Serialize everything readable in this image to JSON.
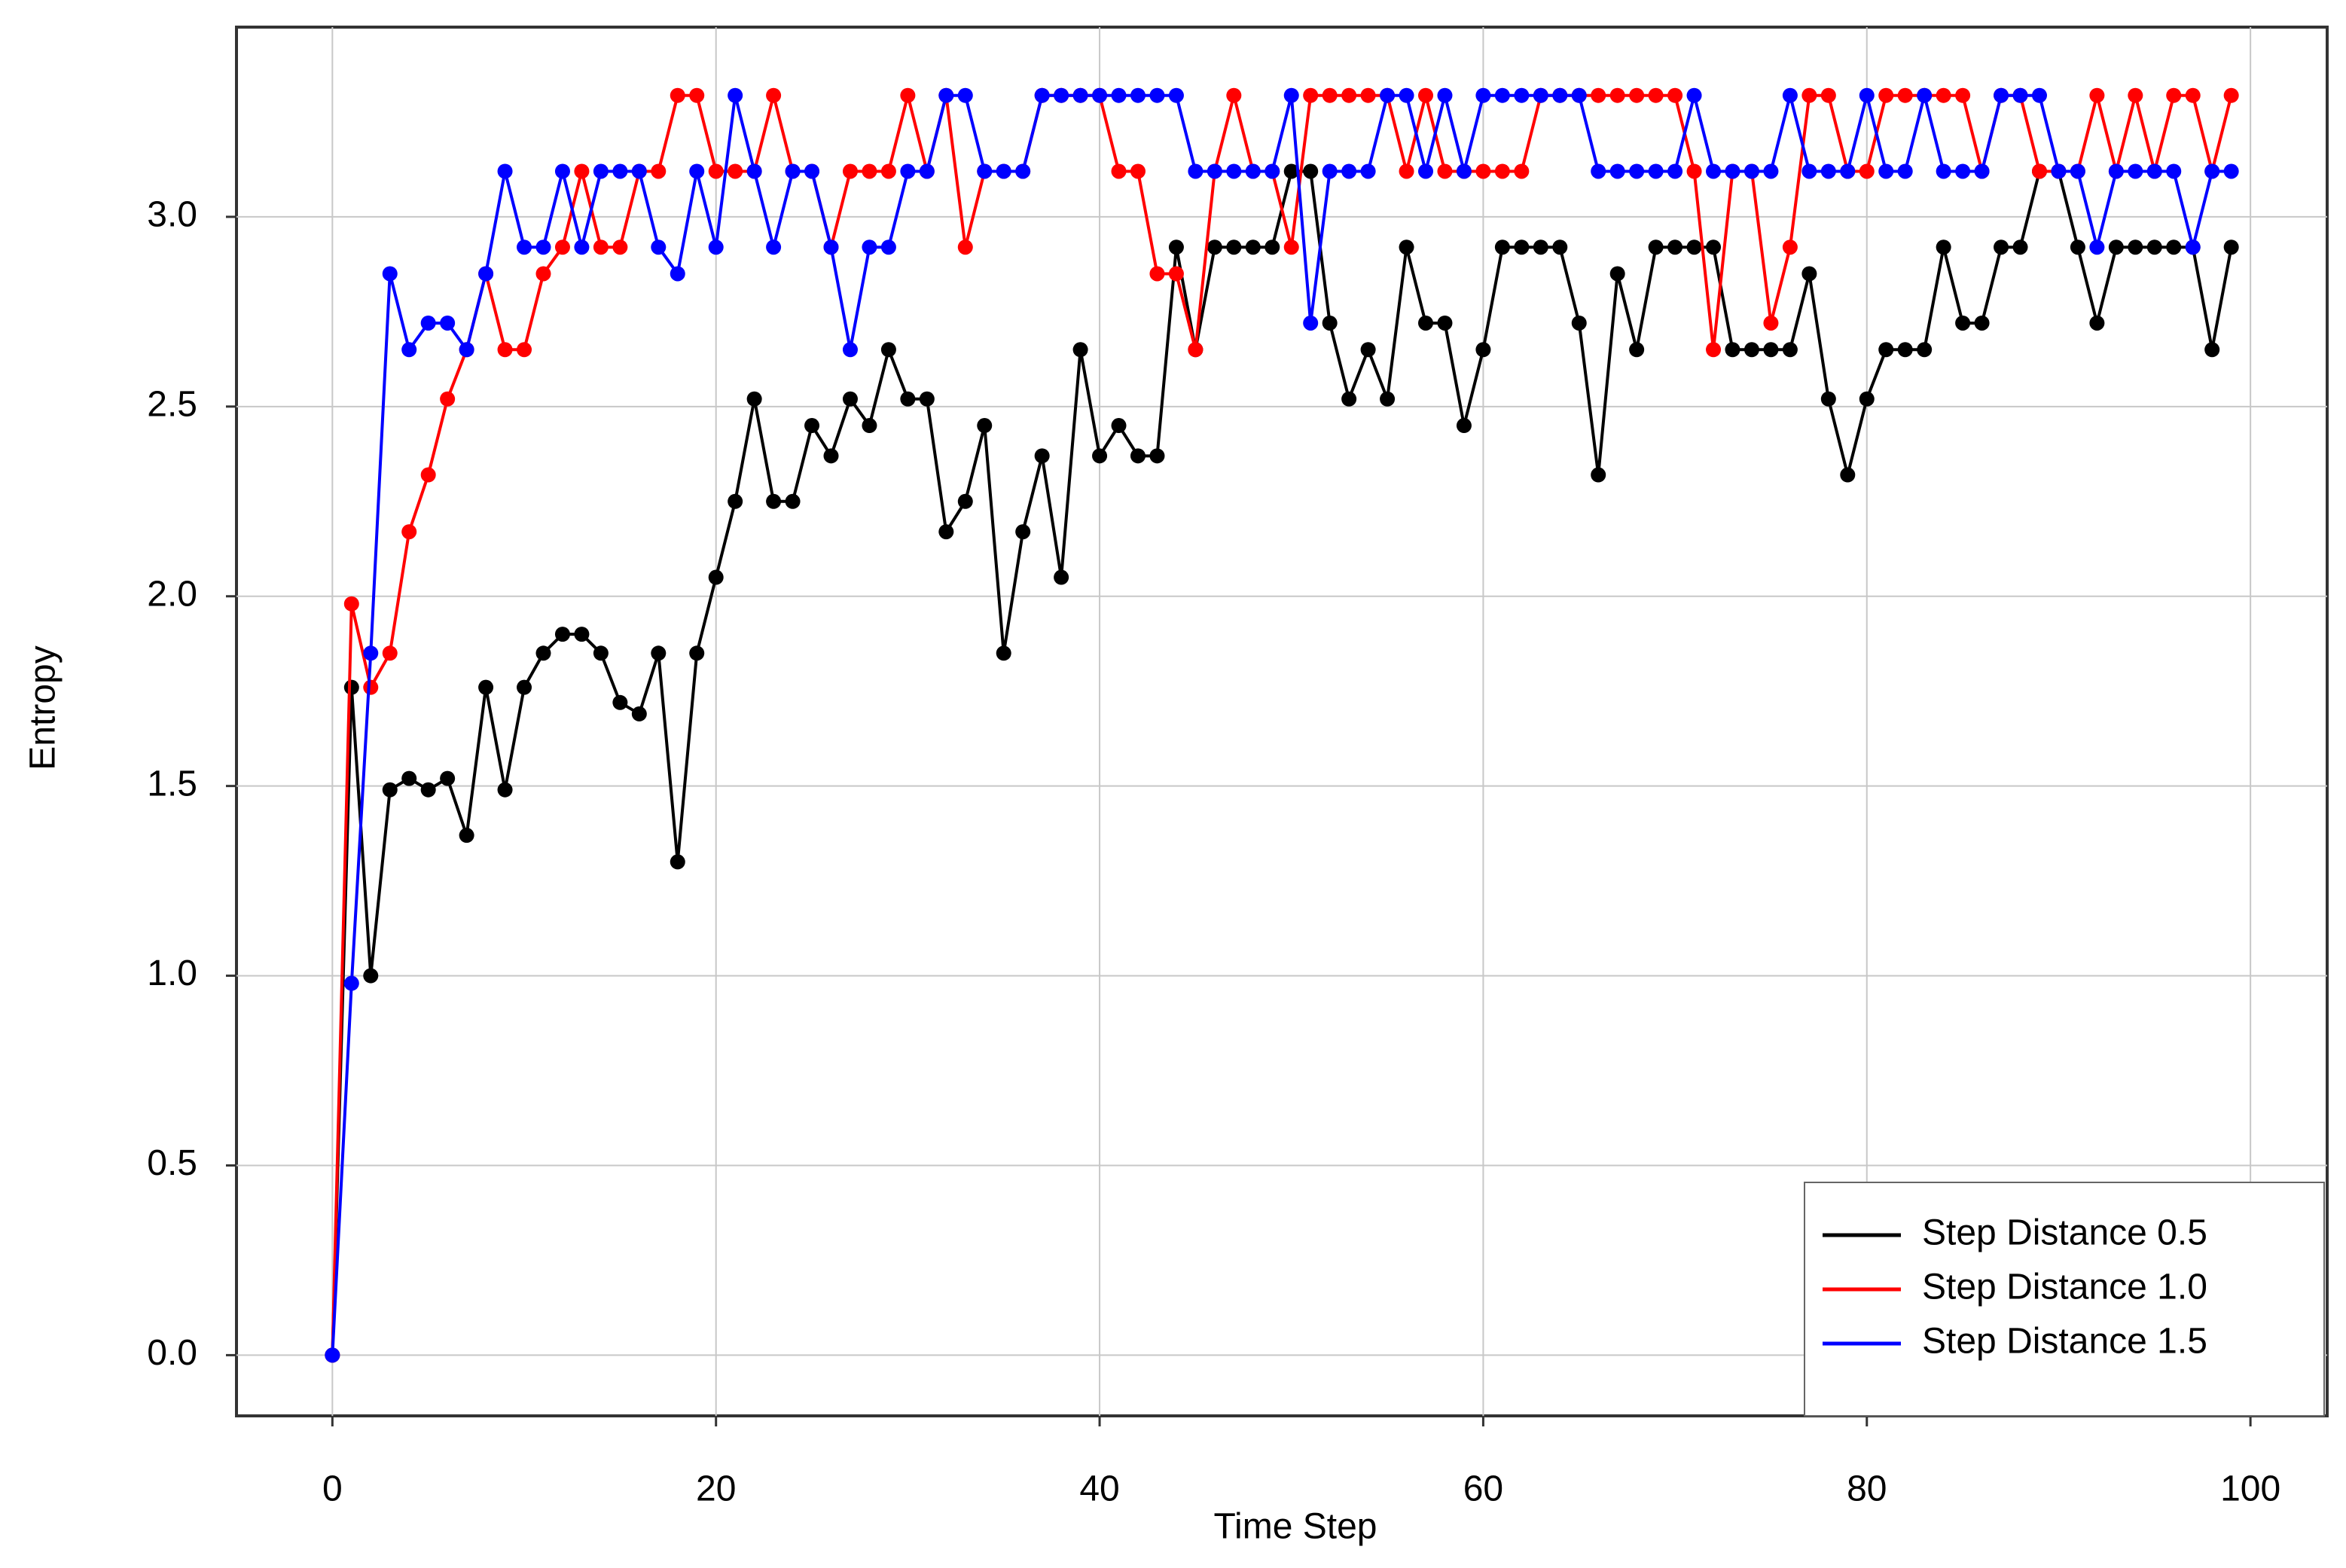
{
  "chart_data": {
    "type": "line",
    "x_label": "Time Step",
    "y_label": "Entropy",
    "x": [
      0,
      1,
      2,
      3,
      4,
      5,
      6,
      7,
      8,
      9,
      10,
      11,
      12,
      13,
      14,
      15,
      16,
      17,
      18,
      19,
      20,
      21,
      22,
      23,
      24,
      25,
      26,
      27,
      28,
      29,
      30,
      31,
      32,
      33,
      34,
      35,
      36,
      37,
      38,
      39,
      40,
      41,
      42,
      43,
      44,
      45,
      46,
      47,
      48,
      49,
      50,
      51,
      52,
      53,
      54,
      55,
      56,
      57,
      58,
      59,
      60,
      61,
      62,
      63,
      64,
      65,
      66,
      67,
      68,
      69,
      70,
      71,
      72,
      73,
      74,
      75,
      76,
      77,
      78,
      79,
      80,
      81,
      82,
      83,
      84,
      85,
      86,
      87,
      88,
      89,
      90,
      91,
      92,
      93,
      94,
      95,
      96,
      97,
      98,
      99
    ],
    "series": [
      {
        "name": "Step Distance 0.5",
        "color": "#000000",
        "values": [
          0,
          1.76,
          1.0,
          1.49,
          1.52,
          1.49,
          1.52,
          1.37,
          1.76,
          1.49,
          1.76,
          1.85,
          1.9,
          1.9,
          1.85,
          1.72,
          1.69,
          1.85,
          1.3,
          1.85,
          2.05,
          2.25,
          2.52,
          2.25,
          2.25,
          2.45,
          2.37,
          2.52,
          2.45,
          2.65,
          2.52,
          2.52,
          2.17,
          2.25,
          2.45,
          1.85,
          2.17,
          2.37,
          2.05,
          2.65,
          2.37,
          2.45,
          2.37,
          2.37,
          2.92,
          2.65,
          2.92,
          2.92,
          2.92,
          2.92,
          3.12,
          3.12,
          2.72,
          2.52,
          2.65,
          2.52,
          2.92,
          2.72,
          2.72,
          2.45,
          2.65,
          2.92,
          2.92,
          2.92,
          2.92,
          2.72,
          2.32,
          2.85,
          2.65,
          2.92,
          2.92,
          2.92,
          2.92,
          2.65,
          2.65,
          2.65,
          2.65,
          2.85,
          2.52,
          2.32,
          2.52,
          2.65,
          2.65,
          2.65,
          2.92,
          2.72,
          2.72,
          2.92,
          2.92,
          3.12,
          3.12,
          2.92,
          2.72,
          2.92,
          2.92,
          2.92,
          2.92,
          2.92,
          2.65,
          2.92
        ]
      },
      {
        "name": "Step Distance 1.0",
        "color": "#ff0000",
        "values": [
          0,
          1.98,
          1.76,
          1.85,
          2.17,
          2.32,
          2.52,
          2.65,
          2.85,
          2.65,
          2.65,
          2.85,
          2.92,
          3.12,
          2.92,
          2.92,
          3.12,
          3.12,
          3.32,
          3.32,
          3.12,
          3.12,
          3.12,
          3.32,
          3.12,
          3.12,
          2.92,
          3.12,
          3.12,
          3.12,
          3.32,
          3.12,
          3.32,
          2.92,
          3.12,
          3.12,
          3.12,
          3.32,
          3.32,
          3.32,
          3.32,
          3.12,
          3.12,
          2.85,
          2.85,
          2.65,
          3.12,
          3.32,
          3.12,
          3.12,
          2.92,
          3.32,
          3.32,
          3.32,
          3.32,
          3.32,
          3.12,
          3.32,
          3.12,
          3.12,
          3.12,
          3.12,
          3.12,
          3.32,
          3.32,
          3.32,
          3.32,
          3.32,
          3.32,
          3.32,
          3.32,
          3.12,
          2.65,
          3.12,
          3.12,
          2.72,
          2.92,
          3.32,
          3.32,
          3.12,
          3.12,
          3.32,
          3.32,
          3.32,
          3.32,
          3.32,
          3.12,
          3.32,
          3.32,
          3.12,
          3.12,
          3.12,
          3.32,
          3.12,
          3.32,
          3.12,
          3.32,
          3.32,
          3.12,
          3.32
        ]
      },
      {
        "name": "Step Distance 1.5",
        "color": "#0000ff",
        "values": [
          0,
          0.98,
          1.85,
          2.85,
          2.65,
          2.72,
          2.72,
          2.65,
          2.85,
          3.12,
          2.92,
          2.92,
          3.12,
          2.92,
          3.12,
          3.12,
          3.12,
          2.92,
          2.85,
          3.12,
          2.92,
          3.32,
          3.12,
          2.92,
          3.12,
          3.12,
          2.92,
          2.65,
          2.92,
          2.92,
          3.12,
          3.12,
          3.32,
          3.32,
          3.12,
          3.12,
          3.12,
          3.32,
          3.32,
          3.32,
          3.32,
          3.32,
          3.32,
          3.32,
          3.32,
          3.12,
          3.12,
          3.12,
          3.12,
          3.12,
          3.32,
          2.72,
          3.12,
          3.12,
          3.12,
          3.32,
          3.32,
          3.12,
          3.32,
          3.12,
          3.32,
          3.32,
          3.32,
          3.32,
          3.32,
          3.32,
          3.12,
          3.12,
          3.12,
          3.12,
          3.12,
          3.32,
          3.12,
          3.12,
          3.12,
          3.12,
          3.32,
          3.12,
          3.12,
          3.12,
          3.32,
          3.12,
          3.12,
          3.32,
          3.12,
          3.12,
          3.12,
          3.32,
          3.32,
          3.32,
          3.12,
          3.12,
          2.92,
          3.12,
          3.12,
          3.12,
          3.12,
          2.92,
          3.12,
          3.12
        ]
      }
    ],
    "xlim": [
      -5,
      104
    ],
    "ylim": [
      -0.16,
      3.5
    ],
    "xticks": [
      0,
      20,
      40,
      60,
      80,
      100
    ],
    "yticks": [
      {
        "value": 0,
        "label": "0.0"
      },
      {
        "value": 0.5,
        "label": "0.5"
      },
      {
        "value": 1,
        "label": "1.0"
      },
      {
        "value": 1.5,
        "label": "1.5"
      },
      {
        "value": 2,
        "label": "2.0"
      },
      {
        "value": 2.5,
        "label": "2.5"
      },
      {
        "value": 3,
        "label": "3.0"
      }
    ],
    "grid": true,
    "legend": "lower right"
  }
}
